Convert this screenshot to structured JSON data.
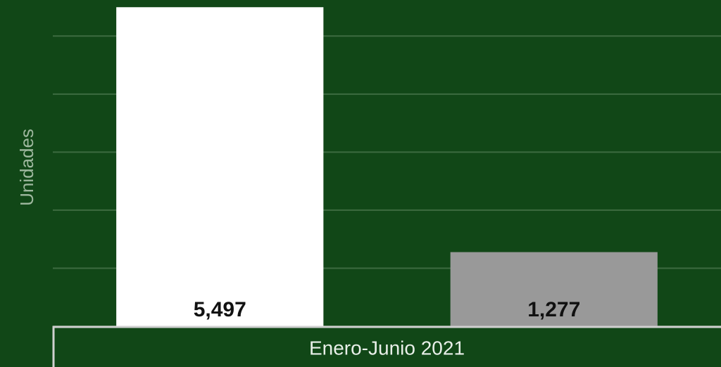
{
  "chart_data": {
    "type": "bar",
    "y_label": "Unidades",
    "categories": [
      "Enero-Junio 2021"
    ],
    "series": [
      {
        "color": "#ffffff",
        "values": [
          5497
        ],
        "value_labels": [
          "5,497"
        ]
      },
      {
        "color": "#999999",
        "values": [
          1277
        ],
        "value_labels": [
          "1,277"
        ]
      }
    ],
    "ylim": [
      0,
      5500
    ],
    "yticks": [
      0,
      1000,
      2000,
      3000,
      4000,
      5000
    ],
    "grid": true
  }
}
